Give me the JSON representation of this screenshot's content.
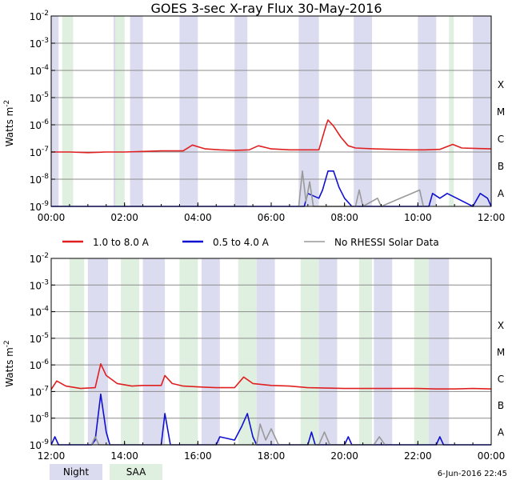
{
  "chart_data": [
    {
      "type": "line",
      "title": "GOES 3-sec X-ray Flux   30-May-2016",
      "ylabel": "Watts m",
      "ylabel_sup": "-2",
      "yscale": "log",
      "ylim": [
        1e-09,
        0.01
      ],
      "y_ticks": [
        {
          "value": 1e-09,
          "base": "10",
          "exp": "-9"
        },
        {
          "value": 1e-08,
          "base": "10",
          "exp": "-8"
        },
        {
          "value": 1e-07,
          "base": "10",
          "exp": "-7"
        },
        {
          "value": 1e-06,
          "base": "10",
          "exp": "-6"
        },
        {
          "value": 1e-05,
          "base": "10",
          "exp": "-5"
        },
        {
          "value": 0.0001,
          "base": "10",
          "exp": "-4"
        },
        {
          "value": 0.001,
          "base": "10",
          "exp": "-3"
        },
        {
          "value": 0.01,
          "base": "10",
          "exp": "-2"
        }
      ],
      "flare_classes": [
        {
          "label": "A",
          "value": 3.16e-09
        },
        {
          "label": "B",
          "value": 3.16e-08
        },
        {
          "label": "C",
          "value": 3.16e-07
        },
        {
          "label": "M",
          "value": 3.16e-06
        },
        {
          "label": "X",
          "value": 3.16e-05
        }
      ],
      "xlim_hours": [
        0,
        12
      ],
      "x_ticks": [
        {
          "value": 0,
          "label": "00:00"
        },
        {
          "value": 2,
          "label": "02:00"
        },
        {
          "value": 4,
          "label": "04:00"
        },
        {
          "value": 6,
          "label": "06:00"
        },
        {
          "value": 8,
          "label": "08:00"
        },
        {
          "value": 10,
          "label": "10:00"
        },
        {
          "value": 12,
          "label": "12:00"
        }
      ],
      "night_intervals": [
        [
          0.0,
          0.2
        ],
        [
          1.7,
          2.0
        ],
        [
          2.15,
          2.5
        ],
        [
          3.5,
          4.0
        ],
        [
          5.0,
          5.35
        ],
        [
          6.75,
          7.3
        ],
        [
          8.25,
          8.75
        ],
        [
          10.0,
          10.5
        ],
        [
          11.5,
          12.0
        ]
      ],
      "saa_intervals": [
        [
          0.3,
          0.6
        ],
        [
          1.75,
          2.0
        ],
        [
          10.85,
          10.98
        ]
      ],
      "series": [
        {
          "name": "1.0 to 8.0 A",
          "color": "#e02020",
          "points": [
            [
              0.0,
              1e-07
            ],
            [
              0.5,
              1e-07
            ],
            [
              1.0,
              9.5e-08
            ],
            [
              1.5,
              1e-07
            ],
            [
              2.0,
              1e-07
            ],
            [
              2.5,
              1.05e-07
            ],
            [
              3.0,
              1.1e-07
            ],
            [
              3.6,
              1.1e-07
            ],
            [
              3.85,
              1.8e-07
            ],
            [
              4.2,
              1.3e-07
            ],
            [
              4.6,
              1.2e-07
            ],
            [
              5.0,
              1.15e-07
            ],
            [
              5.4,
              1.2e-07
            ],
            [
              5.65,
              1.7e-07
            ],
            [
              6.0,
              1.3e-07
            ],
            [
              6.5,
              1.2e-07
            ],
            [
              7.0,
              1.2e-07
            ],
            [
              7.3,
              1.2e-07
            ],
            [
              7.5,
              1e-06
            ],
            [
              7.55,
              1.5e-06
            ],
            [
              7.7,
              9e-07
            ],
            [
              7.9,
              3.5e-07
            ],
            [
              8.1,
              1.7e-07
            ],
            [
              8.3,
              1.4e-07
            ],
            [
              8.8,
              1.3e-07
            ],
            [
              9.3,
              1.25e-07
            ],
            [
              9.8,
              1.2e-07
            ],
            [
              10.2,
              1.2e-07
            ],
            [
              10.6,
              1.25e-07
            ],
            [
              10.95,
              1.9e-07
            ],
            [
              11.2,
              1.4e-07
            ],
            [
              11.6,
              1.35e-07
            ],
            [
              12.0,
              1.3e-07
            ]
          ]
        },
        {
          "name": "0.5 to 4.0 A",
          "color": "#1010d0",
          "points": [
            [
              0.0,
              1e-09
            ],
            [
              6.9,
              1e-09
            ],
            [
              7.0,
              3e-09
            ],
            [
              7.3,
              2e-09
            ],
            [
              7.4,
              4e-09
            ],
            [
              7.55,
              2e-08
            ],
            [
              7.7,
              2e-08
            ],
            [
              7.85,
              5e-09
            ],
            [
              8.0,
              2e-09
            ],
            [
              8.2,
              1e-09
            ],
            [
              10.3,
              1e-09
            ],
            [
              10.4,
              3e-09
            ],
            [
              10.6,
              2e-09
            ],
            [
              10.8,
              3e-09
            ],
            [
              11.5,
              1e-09
            ],
            [
              11.7,
              3e-09
            ],
            [
              11.9,
              2e-09
            ],
            [
              12.0,
              1e-09
            ]
          ]
        },
        {
          "name": "No RHESSI Solar Data",
          "color": "#999999",
          "points": [
            [
              6.75,
              1e-09
            ],
            [
              6.85,
              2e-08
            ],
            [
              6.95,
              1.5e-09
            ],
            [
              7.05,
              8e-09
            ],
            [
              7.15,
              1e-09
            ],
            [
              8.3,
              1e-09
            ],
            [
              8.4,
              4e-09
            ],
            [
              8.5,
              1e-09
            ],
            [
              8.9,
              2e-09
            ],
            [
              9.0,
              1e-09
            ],
            [
              10.05,
              4e-09
            ],
            [
              10.15,
              1e-09
            ]
          ]
        }
      ]
    },
    {
      "type": "line",
      "title": "",
      "ylabel": "Watts m",
      "ylabel_sup": "-2",
      "yscale": "log",
      "ylim": [
        1e-09,
        0.01
      ],
      "y_ticks": [
        {
          "value": 1e-09,
          "base": "10",
          "exp": "-9"
        },
        {
          "value": 1e-08,
          "base": "10",
          "exp": "-8"
        },
        {
          "value": 1e-07,
          "base": "10",
          "exp": "-7"
        },
        {
          "value": 1e-06,
          "base": "10",
          "exp": "-6"
        },
        {
          "value": 1e-05,
          "base": "10",
          "exp": "-5"
        },
        {
          "value": 0.0001,
          "base": "10",
          "exp": "-4"
        },
        {
          "value": 0.001,
          "base": "10",
          "exp": "-3"
        },
        {
          "value": 0.01,
          "base": "10",
          "exp": "-2"
        }
      ],
      "flare_classes": [
        {
          "label": "A",
          "value": 3.16e-09
        },
        {
          "label": "B",
          "value": 3.16e-08
        },
        {
          "label": "C",
          "value": 3.16e-07
        },
        {
          "label": "M",
          "value": 3.16e-06
        },
        {
          "label": "X",
          "value": 3.16e-05
        }
      ],
      "xlim_hours": [
        12,
        24
      ],
      "x_ticks": [
        {
          "value": 12,
          "label": "12:00"
        },
        {
          "value": 14,
          "label": "14:00"
        },
        {
          "value": 16,
          "label": "16:00"
        },
        {
          "value": 18,
          "label": "18:00"
        },
        {
          "value": 20,
          "label": "20:00"
        },
        {
          "value": 22,
          "label": "22:00"
        },
        {
          "value": 24,
          "label": "00:00"
        }
      ],
      "night_intervals": [
        [
          13.0,
          13.55
        ],
        [
          14.5,
          15.1
        ],
        [
          16.1,
          16.6
        ],
        [
          17.6,
          18.1
        ],
        [
          19.3,
          19.8
        ],
        [
          20.8,
          21.3
        ],
        [
          22.3,
          22.85
        ]
      ],
      "saa_intervals": [
        [
          12.5,
          12.9
        ],
        [
          13.9,
          14.4
        ],
        [
          15.5,
          16.0
        ],
        [
          17.1,
          17.6
        ],
        [
          18.8,
          19.3
        ],
        [
          20.4,
          20.75
        ],
        [
          21.9,
          22.3
        ]
      ],
      "series": [
        {
          "name": "1.0 to 8.0 A",
          "color": "#e02020",
          "points": [
            [
              12.0,
              1.2e-07
            ],
            [
              12.15,
              2.5e-07
            ],
            [
              12.4,
              1.6e-07
            ],
            [
              12.8,
              1.3e-07
            ],
            [
              13.2,
              1.4e-07
            ],
            [
              13.35,
              1.1e-06
            ],
            [
              13.5,
              4e-07
            ],
            [
              13.8,
              2e-07
            ],
            [
              14.2,
              1.6e-07
            ],
            [
              14.5,
              1.7e-07
            ],
            [
              15.0,
              1.7e-07
            ],
            [
              15.1,
              4e-07
            ],
            [
              15.3,
              2e-07
            ],
            [
              15.6,
              1.6e-07
            ],
            [
              16.0,
              1.5e-07
            ],
            [
              16.5,
              1.4e-07
            ],
            [
              17.0,
              1.4e-07
            ],
            [
              17.25,
              3.5e-07
            ],
            [
              17.5,
              2e-07
            ],
            [
              18.0,
              1.7e-07
            ],
            [
              18.5,
              1.6e-07
            ],
            [
              19.0,
              1.4e-07
            ],
            [
              19.5,
              1.35e-07
            ],
            [
              20.0,
              1.3e-07
            ],
            [
              20.5,
              1.3e-07
            ],
            [
              21.0,
              1.3e-07
            ],
            [
              21.5,
              1.3e-07
            ],
            [
              22.0,
              1.3e-07
            ],
            [
              22.5,
              1.25e-07
            ],
            [
              23.0,
              1.25e-07
            ],
            [
              23.5,
              1.3e-07
            ],
            [
              24.0,
              1.25e-07
            ]
          ]
        },
        {
          "name": "0.5 to 4.0 A",
          "color": "#1010d0",
          "points": [
            [
              12.0,
              1e-09
            ],
            [
              12.1,
              2e-09
            ],
            [
              12.2,
              1e-09
            ],
            [
              13.1,
              1e-09
            ],
            [
              13.2,
              1.5e-09
            ],
            [
              13.35,
              8e-08
            ],
            [
              13.5,
              3e-09
            ],
            [
              13.6,
              1e-09
            ],
            [
              15.0,
              1e-09
            ],
            [
              15.1,
              1.5e-08
            ],
            [
              15.25,
              1e-09
            ],
            [
              16.5,
              1e-09
            ],
            [
              16.6,
              2e-09
            ],
            [
              17.0,
              1.5e-09
            ],
            [
              17.2,
              5e-09
            ],
            [
              17.35,
              1.5e-08
            ],
            [
              17.5,
              2e-09
            ],
            [
              17.6,
              1e-09
            ],
            [
              19.0,
              1e-09
            ],
            [
              19.1,
              3e-09
            ],
            [
              19.2,
              1e-09
            ],
            [
              20.0,
              1e-09
            ],
            [
              20.1,
              2e-09
            ],
            [
              20.2,
              1e-09
            ],
            [
              22.5,
              1e-09
            ],
            [
              22.6,
              2e-09
            ],
            [
              22.7,
              1e-09
            ],
            [
              24.0,
              1e-09
            ]
          ]
        },
        {
          "name": "No RHESSI Solar Data",
          "color": "#999999",
          "points": [
            [
              13.1,
              1e-09
            ],
            [
              13.2,
              2e-09
            ],
            [
              13.3,
              1e-09
            ],
            [
              17.6,
              1e-09
            ],
            [
              17.7,
              6e-09
            ],
            [
              17.85,
              1.5e-09
            ],
            [
              18.0,
              4e-09
            ],
            [
              18.2,
              1e-09
            ],
            [
              19.3,
              1e-09
            ],
            [
              19.45,
              3e-09
            ],
            [
              19.6,
              1e-09
            ],
            [
              20.8,
              1e-09
            ],
            [
              20.95,
              2e-09
            ],
            [
              21.1,
              1e-09
            ]
          ]
        }
      ]
    }
  ],
  "legend": [
    {
      "label": "1.0 to 8.0 A",
      "color": "#e02020"
    },
    {
      "label": "0.5 to 4.0 A",
      "color": "#1010d0"
    },
    {
      "label": "No RHESSI Solar Data",
      "color": "#999999"
    }
  ],
  "shading_legend": [
    {
      "label": "Night",
      "color": "#dcdcf0"
    },
    {
      "label": "SAA",
      "color": "#e0f0e0"
    }
  ],
  "footer_timestamp": "6-Jun-2016 22:45"
}
